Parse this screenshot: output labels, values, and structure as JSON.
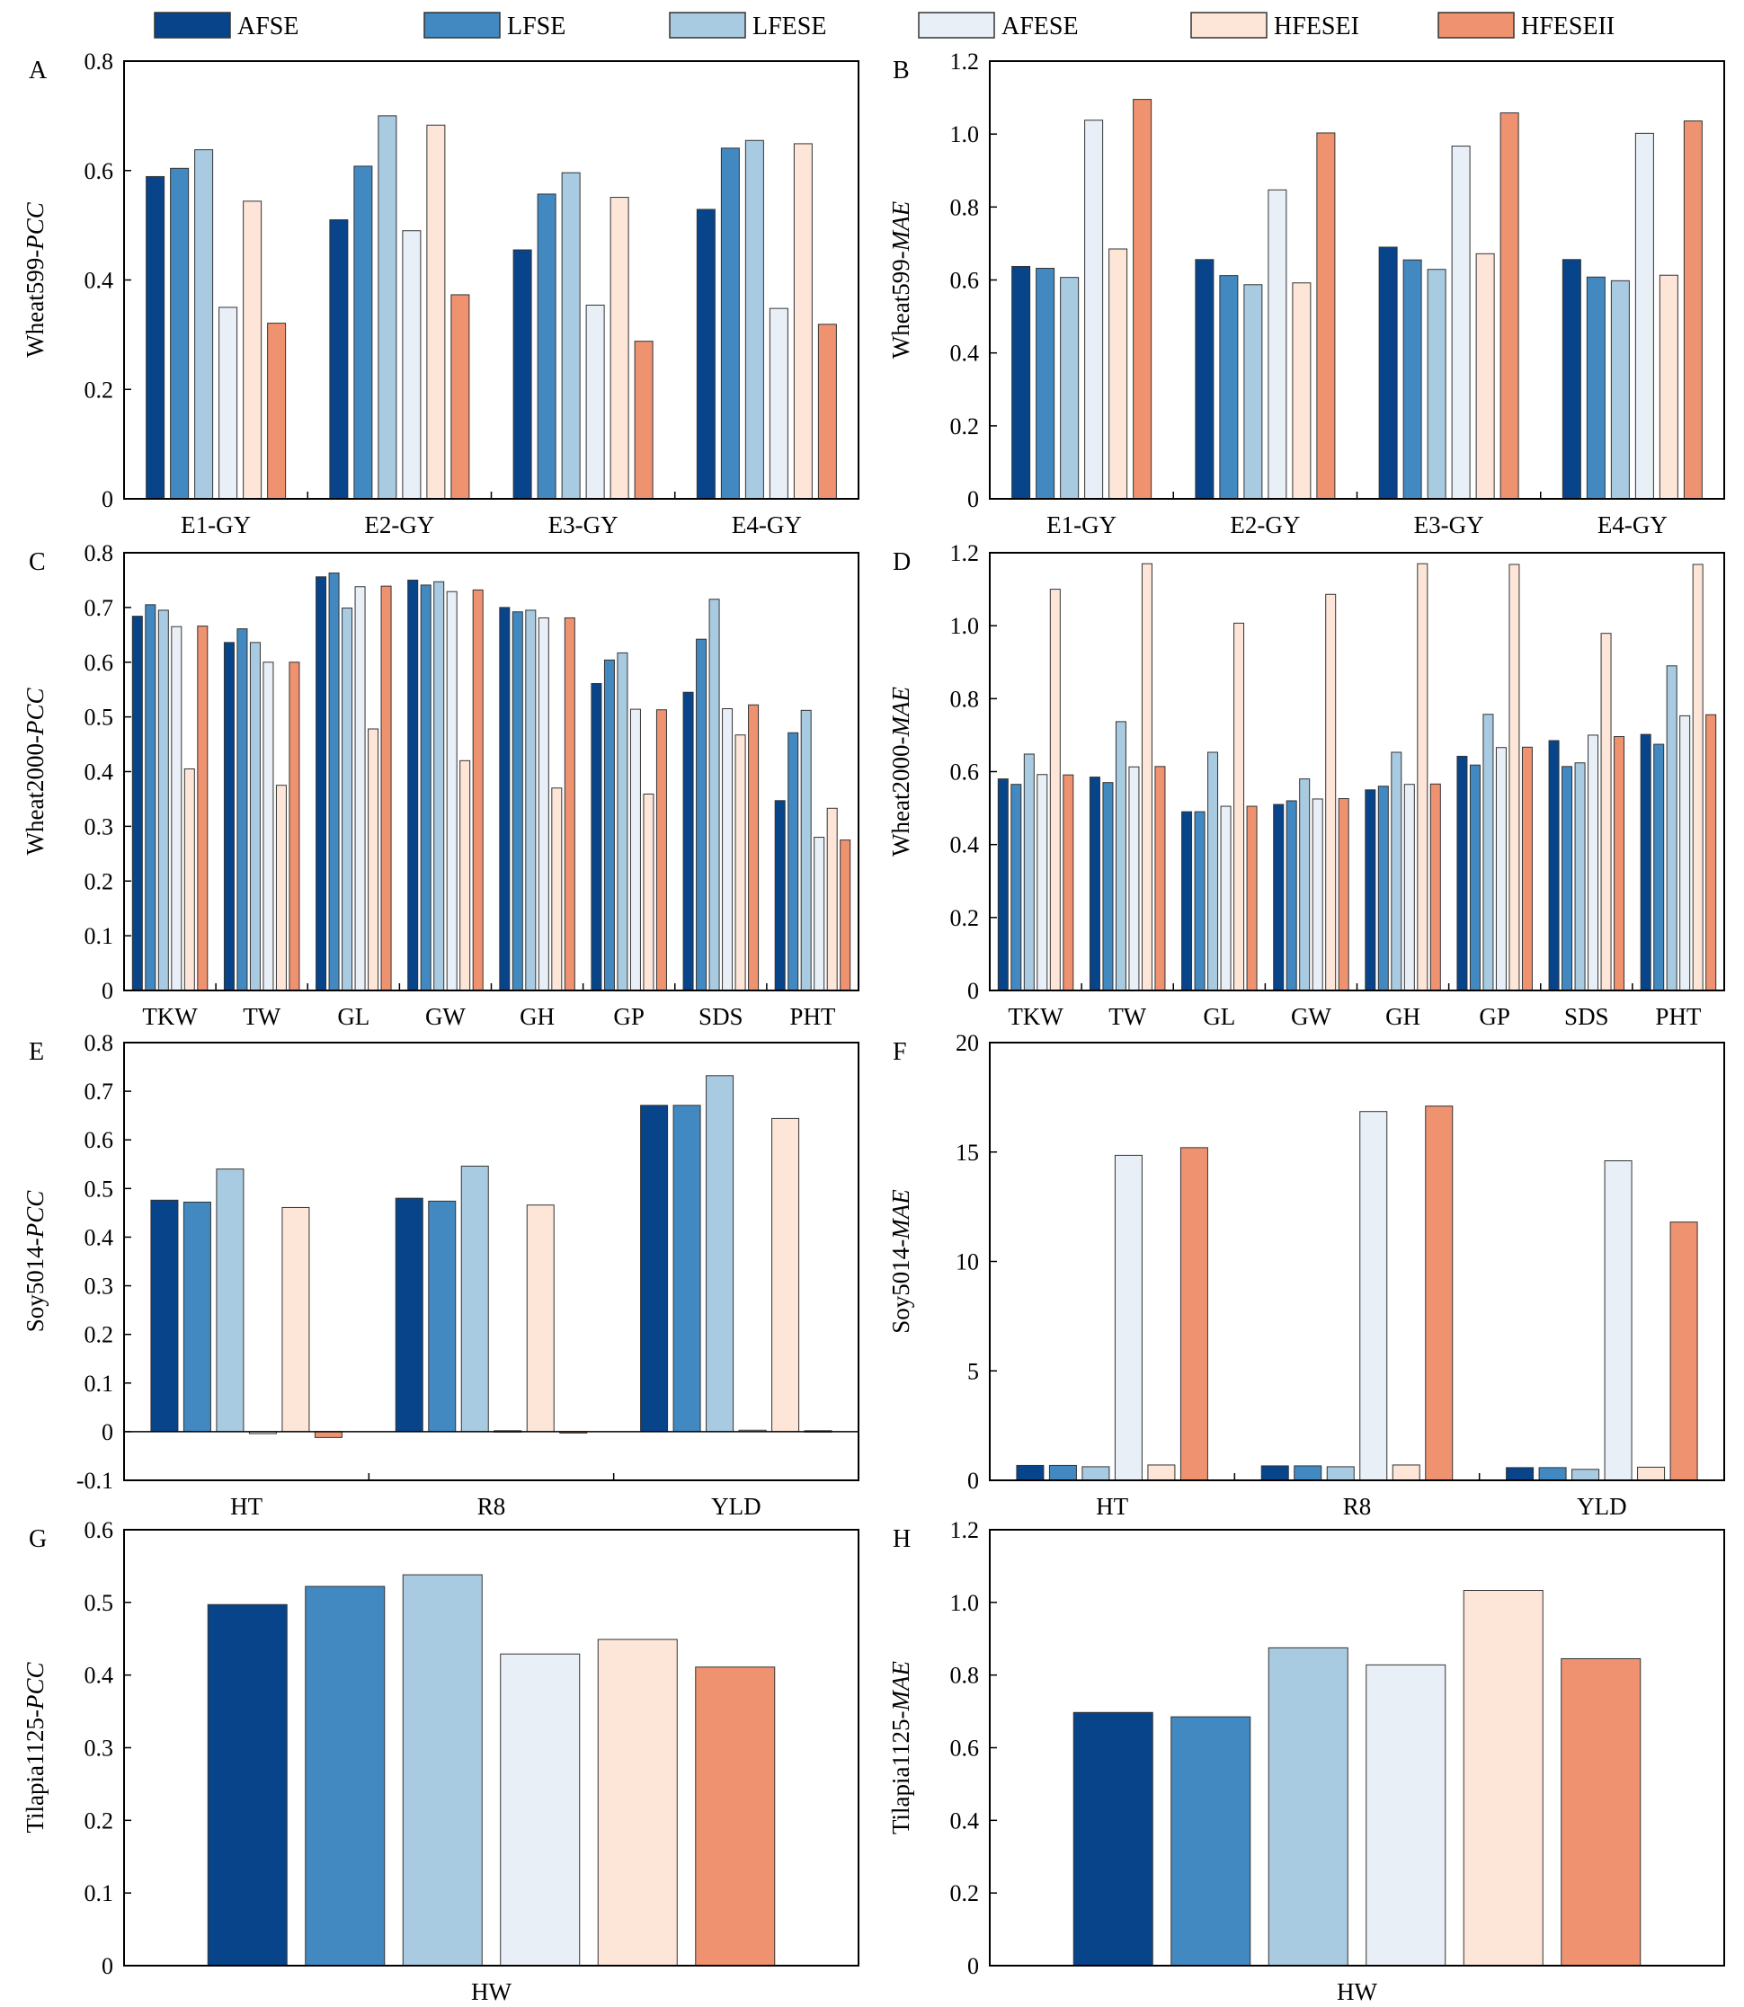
{
  "legend": {
    "items": [
      {
        "label": "AFSE",
        "color": "#08448A"
      },
      {
        "label": "LFSE",
        "color": "#4289C1"
      },
      {
        "label": "LFESE",
        "color": "#A9CBE1"
      },
      {
        "label": "AFESE",
        "color": "#E8EFF7"
      },
      {
        "label": "HFESEI",
        "color": "#FDE5D8"
      },
      {
        "label": "HFESEII",
        "color": "#EF9270"
      }
    ]
  },
  "chart_data": [
    {
      "panel": "A",
      "type": "bar",
      "ylabel_prefix": "Wheat599-",
      "ylabel_italic": "PCC",
      "ylim": [
        0,
        0.8
      ],
      "yticks": [
        "0",
        "0.2",
        "0.4",
        "0.6",
        "0.8"
      ],
      "categories": [
        "E1-GY",
        "E2-GY",
        "E3-GY",
        "E4-GY"
      ],
      "series": [
        {
          "name": "AFSE",
          "values": [
            0.589,
            0.51,
            0.455,
            0.529
          ]
        },
        {
          "name": "LFSE",
          "values": [
            0.604,
            0.608,
            0.557,
            0.641
          ]
        },
        {
          "name": "LFESE",
          "values": [
            0.638,
            0.7,
            0.596,
            0.655
          ]
        },
        {
          "name": "AFESE",
          "values": [
            0.35,
            0.49,
            0.354,
            0.348
          ]
        },
        {
          "name": "HFESEI",
          "values": [
            0.544,
            0.683,
            0.551,
            0.649
          ]
        },
        {
          "name": "HFESEII",
          "values": [
            0.321,
            0.373,
            0.288,
            0.319
          ]
        }
      ]
    },
    {
      "panel": "B",
      "type": "bar",
      "ylabel_prefix": "Wheat599-",
      "ylabel_italic": "MAE",
      "ylim": [
        0,
        1.2
      ],
      "yticks": [
        "0",
        "0.2",
        "0.4",
        "0.6",
        "0.8",
        "1.0",
        "1.2"
      ],
      "categories": [
        "E1-GY",
        "E2-GY",
        "E3-GY",
        "E4-GY"
      ],
      "series": [
        {
          "name": "AFSE",
          "values": [
            0.637,
            0.656,
            0.69,
            0.656
          ]
        },
        {
          "name": "LFSE",
          "values": [
            0.632,
            0.612,
            0.655,
            0.608
          ]
        },
        {
          "name": "LFESE",
          "values": [
            0.607,
            0.587,
            0.629,
            0.598
          ]
        },
        {
          "name": "AFESE",
          "values": [
            1.038,
            0.847,
            0.967,
            1.002
          ]
        },
        {
          "name": "HFESEI",
          "values": [
            0.685,
            0.592,
            0.672,
            0.613
          ]
        },
        {
          "name": "HFESEII",
          "values": [
            1.095,
            1.003,
            1.058,
            1.036
          ]
        }
      ]
    },
    {
      "panel": "C",
      "type": "bar",
      "ylabel_prefix": "Wheat2000-",
      "ylabel_italic": "PCC",
      "ylim": [
        0,
        0.8
      ],
      "yticks": [
        "0",
        "0.1",
        "0.2",
        "0.3",
        "0.4",
        "0.5",
        "0.6",
        "0.7",
        "0.8"
      ],
      "categories": [
        "TKW",
        "TW",
        "GL",
        "GW",
        "GH",
        "GP",
        "SDS",
        "PHT"
      ],
      "series": [
        {
          "name": "AFSE",
          "values": [
            0.684,
            0.636,
            0.756,
            0.75,
            0.7,
            0.561,
            0.545,
            0.347
          ]
        },
        {
          "name": "LFSE",
          "values": [
            0.705,
            0.661,
            0.763,
            0.741,
            0.692,
            0.604,
            0.642,
            0.471
          ]
        },
        {
          "name": "LFESE",
          "values": [
            0.695,
            0.636,
            0.699,
            0.747,
            0.695,
            0.617,
            0.715,
            0.512
          ]
        },
        {
          "name": "AFESE",
          "values": [
            0.665,
            0.6,
            0.738,
            0.729,
            0.681,
            0.514,
            0.515,
            0.28
          ]
        },
        {
          "name": "HFESEI",
          "values": [
            0.405,
            0.375,
            0.478,
            0.42,
            0.37,
            0.359,
            0.467,
            0.333
          ]
        },
        {
          "name": "HFESEII",
          "values": [
            0.666,
            0.6,
            0.739,
            0.732,
            0.681,
            0.513,
            0.522,
            0.275
          ]
        }
      ]
    },
    {
      "panel": "D",
      "type": "bar",
      "ylabel_prefix": "Wheat2000-",
      "ylabel_italic": "MAE",
      "ylim": [
        0,
        1.2
      ],
      "yticks": [
        "0",
        "0.2",
        "0.4",
        "0.6",
        "0.8",
        "1.0",
        "1.2"
      ],
      "categories": [
        "TKW",
        "TW",
        "GL",
        "GW",
        "GH",
        "GP",
        "SDS",
        "PHT"
      ],
      "series": [
        {
          "name": "AFSE",
          "values": [
            0.58,
            0.585,
            0.49,
            0.51,
            0.55,
            0.642,
            0.685,
            0.702
          ]
        },
        {
          "name": "LFSE",
          "values": [
            0.565,
            0.57,
            0.49,
            0.52,
            0.56,
            0.618,
            0.614,
            0.675
          ]
        },
        {
          "name": "LFESE",
          "values": [
            0.648,
            0.737,
            0.653,
            0.58,
            0.653,
            0.757,
            0.624,
            0.89
          ]
        },
        {
          "name": "AFESE",
          "values": [
            0.592,
            0.613,
            0.505,
            0.525,
            0.565,
            0.666,
            0.7,
            0.753
          ]
        },
        {
          "name": "HFESEI",
          "values": [
            1.1,
            1.17,
            1.007,
            1.086,
            1.17,
            1.168,
            0.979,
            1.168
          ]
        },
        {
          "name": "HFESEII",
          "values": [
            0.591,
            0.614,
            0.505,
            0.526,
            0.566,
            0.667,
            0.696,
            0.756
          ]
        }
      ]
    },
    {
      "panel": "E",
      "type": "bar",
      "ylabel_prefix": "Soy5014-",
      "ylabel_italic": "PCC",
      "ylim": [
        -0.1,
        0.8
      ],
      "yticks": [
        "-0.1",
        "0",
        "0.1",
        "0.2",
        "0.3",
        "0.4",
        "0.5",
        "0.6",
        "0.7",
        "0.8"
      ],
      "categories": [
        "HT",
        "R8",
        "YLD"
      ],
      "series": [
        {
          "name": "AFSE",
          "values": [
            0.476,
            0.48,
            0.671
          ]
        },
        {
          "name": "LFSE",
          "values": [
            0.472,
            0.474,
            0.671
          ]
        },
        {
          "name": "LFESE",
          "values": [
            0.54,
            0.546,
            0.732
          ]
        },
        {
          "name": "AFESE",
          "values": [
            -0.004,
            0.002,
            0.003
          ]
        },
        {
          "name": "HFESEI",
          "values": [
            0.461,
            0.466,
            0.644
          ]
        },
        {
          "name": "HFESEII",
          "values": [
            -0.012,
            0.0,
            0.002
          ]
        }
      ]
    },
    {
      "panel": "F",
      "type": "bar",
      "ylabel_prefix": "Soy5014-",
      "ylabel_italic": "MAE",
      "ylim": [
        0,
        20
      ],
      "yticks": [
        "0",
        "5",
        "10",
        "15",
        "20"
      ],
      "categories": [
        "HT",
        "R8",
        "YLD"
      ],
      "series": [
        {
          "name": "AFSE",
          "values": [
            0.68,
            0.66,
            0.58
          ]
        },
        {
          "name": "LFSE",
          "values": [
            0.68,
            0.66,
            0.58
          ]
        },
        {
          "name": "LFESE",
          "values": [
            0.62,
            0.62,
            0.5
          ]
        },
        {
          "name": "AFESE",
          "values": [
            14.85,
            16.85,
            14.6
          ]
        },
        {
          "name": "HFESEI",
          "values": [
            0.7,
            0.7,
            0.6
          ]
        },
        {
          "name": "HFESEII",
          "values": [
            15.2,
            17.1,
            11.8
          ]
        }
      ]
    },
    {
      "panel": "G",
      "type": "bar",
      "ylabel_prefix": "Tilapia1125-",
      "ylabel_italic": "PCC",
      "ylim": [
        0,
        0.6
      ],
      "yticks": [
        "0",
        "0.1",
        "0.2",
        "0.3",
        "0.4",
        "0.5",
        "0.6"
      ],
      "categories": [
        "HW"
      ],
      "series": [
        {
          "name": "AFSE",
          "values": [
            0.497
          ]
        },
        {
          "name": "LFSE",
          "values": [
            0.522
          ]
        },
        {
          "name": "LFESE",
          "values": [
            0.538
          ]
        },
        {
          "name": "AFESE",
          "values": [
            0.429
          ]
        },
        {
          "name": "HFESEI",
          "values": [
            0.449
          ]
        },
        {
          "name": "HFESEII",
          "values": [
            0.411
          ]
        }
      ]
    },
    {
      "panel": "H",
      "type": "bar",
      "ylabel_prefix": "Tilapia1125-",
      "ylabel_italic": "MAE",
      "ylim": [
        0,
        1.2
      ],
      "yticks": [
        "0",
        "0.2",
        "0.4",
        "0.6",
        "0.8",
        "1.0",
        "1.2"
      ],
      "categories": [
        "HW"
      ],
      "series": [
        {
          "name": "AFSE",
          "values": [
            0.697
          ]
        },
        {
          "name": "LFSE",
          "values": [
            0.685
          ]
        },
        {
          "name": "LFESE",
          "values": [
            0.875
          ]
        },
        {
          "name": "AFESE",
          "values": [
            0.828
          ]
        },
        {
          "name": "HFESEI",
          "values": [
            1.033
          ]
        },
        {
          "name": "HFESEII",
          "values": [
            0.845
          ]
        }
      ]
    }
  ]
}
